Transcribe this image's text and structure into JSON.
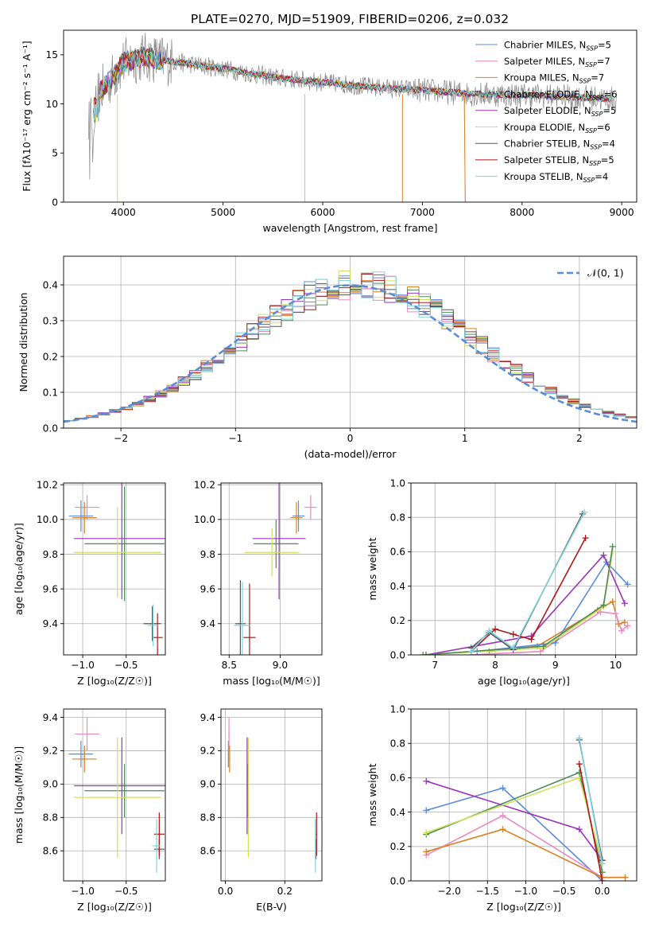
{
  "figure_title": "PLATE=0270, MJD=51909, FIBERID=0206, z=0.032",
  "colors": {
    "Chabrier MILES": "#5b8bd9",
    "Salpeter MILES": "#e88bbd",
    "Kroupa MILES": "#d98021",
    "Chabrier ELODIE": "#4f8a5c",
    "Salpeter ELODIE": "#9b34b8",
    "Kroupa ELODIE": "#cfe05a",
    "Chabrier STELIB": "#555555",
    "Salpeter STELIB": "#b01818",
    "Kroupa STELIB": "#7fd3df",
    "data": "#888888",
    "normal": "#5b8bd9",
    "grid": "#b0b0b0"
  },
  "chart_data": [
    {
      "id": "spectrum",
      "type": "line",
      "xlabel": "wavelength [Angstrom, rest frame]",
      "ylabel": "Flux [f",
      "ylabel_tex": "λ10⁻¹⁷ erg cm⁻² s⁻¹ A⁻¹]",
      "xlim": [
        3400,
        9150
      ],
      "ylim": [
        0,
        17.5
      ],
      "xticks": [
        4000,
        5000,
        6000,
        7000,
        8000,
        9000
      ],
      "yticks": [
        0,
        5,
        10,
        15
      ],
      "grid": false,
      "legend": "top-right",
      "legend_entries": [
        {
          "label": "Chabrier MILES, N",
          "sub": "SSP",
          "tail": "=5"
        },
        {
          "label": "Salpeter MILES, N",
          "sub": "SSP",
          "tail": "=7"
        },
        {
          "label": "Kroupa MILES, N",
          "sub": "SSP",
          "tail": "=7"
        },
        {
          "label": "Chabrier ELODIE, N",
          "sub": "SSP",
          "tail": "=6"
        },
        {
          "label": "Salpeter ELODIE, N",
          "sub": "SSP",
          "tail": "=5"
        },
        {
          "label": "Kroupa ELODIE, N",
          "sub": "SSP",
          "tail": "=6"
        },
        {
          "label": "Chabrier STELIB, N",
          "sub": "SSP",
          "tail": "=4"
        },
        {
          "label": "Salpeter STELIB, N",
          "sub": "SSP",
          "tail": "=5"
        },
        {
          "label": "Kroupa STELIB, N",
          "sub": "SSP",
          "tail": "=4"
        }
      ],
      "model_continuum": [
        [
          3700,
          8.5
        ],
        [
          3750,
          11.0
        ],
        [
          3900,
          12.8
        ],
        [
          4000,
          14.2
        ],
        [
          4200,
          14.8
        ],
        [
          4500,
          14.3
        ],
        [
          5000,
          13.6
        ],
        [
          5500,
          12.7
        ],
        [
          6000,
          12.2
        ],
        [
          6500,
          11.7
        ],
        [
          7000,
          11.4
        ],
        [
          7500,
          11.0
        ],
        [
          8000,
          10.9
        ],
        [
          8500,
          10.7
        ],
        [
          8900,
          10.5
        ]
      ],
      "data_range": [
        3650,
        8950
      ]
    },
    {
      "id": "residuals",
      "type": "histogram",
      "xlabel": "(data-model)/error",
      "ylabel": "Normed distribution",
      "xlim": [
        -2.5,
        2.5
      ],
      "ylim": [
        0,
        0.48
      ],
      "xticks": [
        -2,
        -1,
        0,
        1,
        2
      ],
      "yticks": [
        0.0,
        0.1,
        0.2,
        0.3,
        0.4
      ],
      "grid": true,
      "legend": "top-right",
      "legend_label": "𝒩(0, 1)",
      "bin_width": 0.1
    },
    {
      "id": "age_vs_Z",
      "type": "errorbar",
      "xlabel": "Z [log₁₀(Z/Z☉)]",
      "ylabel": "age  [log₁₀(age/yr)]",
      "xlim": [
        -1.22,
        -0.05
      ],
      "ylim": [
        9.22,
        10.21
      ],
      "xticks": [
        -1.0,
        -0.5
      ],
      "yticks": [
        9.4,
        9.6,
        9.8,
        10.0,
        10.2
      ],
      "grid": true,
      "points": [
        {
          "model": "Chabrier MILES",
          "x": -1.02,
          "xerr": 0.14,
          "y": 10.02,
          "yerr": 0.09
        },
        {
          "model": "Salpeter MILES",
          "x": -0.95,
          "xerr": 0.14,
          "y": 10.07,
          "yerr": 0.07
        },
        {
          "model": "Kroupa MILES",
          "x": -0.98,
          "xerr": 0.14,
          "y": 10.01,
          "yerr": 0.09
        },
        {
          "model": "Chabrier ELODIE",
          "x": -0.52,
          "xerr": 0.46,
          "y": 9.86,
          "yerr": 0.33
        },
        {
          "model": "Salpeter ELODIE",
          "x": -0.55,
          "xerr": 0.55,
          "y": 9.89,
          "yerr": 0.35
        },
        {
          "model": "Kroupa ELODIE",
          "x": -0.6,
          "xerr": 0.5,
          "y": 9.81,
          "yerr": 0.26
        },
        {
          "model": "Chabrier STELIB",
          "x": -0.2,
          "xerr": 0.1,
          "y": 9.4,
          "yerr": 0.1
        },
        {
          "model": "Salpeter STELIB",
          "x": -0.14,
          "xerr": 0.06,
          "y": 9.32,
          "yerr": 0.14
        },
        {
          "model": "Kroupa STELIB",
          "x": -0.19,
          "xerr": 0.06,
          "y": 9.39,
          "yerr": 0.12
        }
      ]
    },
    {
      "id": "age_vs_mass",
      "type": "errorbar",
      "xlabel": "mass [log₁₀(M/M☉)]",
      "ylabel": "",
      "xlim": [
        8.42,
        9.41
      ],
      "ylim": [
        9.22,
        10.21
      ],
      "xticks": [
        8.5,
        9.0
      ],
      "yticks": [
        9.4,
        9.6,
        9.8,
        10.0,
        10.2
      ],
      "grid": true,
      "points": [
        {
          "model": "Chabrier MILES",
          "x": 9.18,
          "xerr": 0.06,
          "y": 10.02,
          "yerr": 0.09
        },
        {
          "model": "Salpeter MILES",
          "x": 9.3,
          "xerr": 0.06,
          "y": 10.07,
          "yerr": 0.07
        },
        {
          "model": "Kroupa MILES",
          "x": 9.16,
          "xerr": 0.06,
          "y": 10.01,
          "yerr": 0.09
        },
        {
          "model": "Chabrier ELODIE",
          "x": 8.96,
          "xerr": 0.22,
          "y": 9.86,
          "yerr": 0.14
        },
        {
          "model": "Salpeter ELODIE",
          "x": 8.99,
          "xerr": 0.26,
          "y": 9.89,
          "yerr": 0.35
        },
        {
          "model": "Kroupa ELODIE",
          "x": 8.92,
          "xerr": 0.27,
          "y": 9.81,
          "yerr": 0.14
        },
        {
          "model": "Chabrier STELIB",
          "x": 8.61,
          "xerr": 0.05,
          "y": 9.4,
          "yerr": 0.25
        },
        {
          "model": "Salpeter STELIB",
          "x": 8.7,
          "xerr": 0.06,
          "y": 9.32,
          "yerr": 0.31
        },
        {
          "model": "Kroupa STELIB",
          "x": 8.63,
          "xerr": 0.08,
          "y": 9.39,
          "yerr": 0.25
        }
      ]
    },
    {
      "id": "weight_vs_age",
      "type": "line",
      "xlabel": "age  [log₁₀(age/yr)]",
      "ylabel": "mass weight",
      "xlim": [
        6.6,
        10.35
      ],
      "ylim": [
        0,
        1
      ],
      "xticks": [
        7,
        8,
        9,
        10
      ],
      "yticks": [
        0.0,
        0.2,
        0.4,
        0.6,
        0.8,
        1.0
      ],
      "grid": true,
      "series": [
        {
          "model": "Kroupa MILES",
          "x": [
            7.9,
            8.7,
            9.7,
            9.95,
            10.05,
            10.15
          ],
          "y": [
            0.02,
            0.05,
            0.26,
            0.31,
            0.18,
            0.19
          ]
        },
        {
          "model": "Salpeter MILES",
          "x": [
            7.6,
            8.75,
            9.75,
            10.0,
            10.1,
            10.2
          ],
          "y": [
            0.0,
            0.02,
            0.25,
            0.24,
            0.14,
            0.17
          ]
        },
        {
          "model": "Chabrier MILES",
          "x": [
            7.7,
            9.0,
            9.85,
            10.2
          ],
          "y": [
            0.02,
            0.07,
            0.54,
            0.41
          ]
        },
        {
          "model": "Salpeter ELODIE",
          "x": [
            6.85,
            8.6,
            9.8,
            10.15
          ],
          "y": [
            0.0,
            0.11,
            0.58,
            0.3
          ]
        },
        {
          "model": "Kroupa ELODIE",
          "x": [
            6.8,
            8.8,
            9.8,
            9.95
          ],
          "y": [
            0.0,
            0.04,
            0.28,
            0.6
          ]
        },
        {
          "model": "Chabrier ELODIE",
          "x": [
            6.8,
            8.8,
            9.8,
            9.95
          ],
          "y": [
            0.0,
            0.05,
            0.29,
            0.63
          ]
        },
        {
          "model": "Salpeter STELIB",
          "x": [
            7.6,
            8.0,
            8.3,
            8.6,
            9.5
          ],
          "y": [
            0.02,
            0.15,
            0.12,
            0.09,
            0.68
          ]
        },
        {
          "model": "Chabrier STELIB",
          "x": [
            7.6,
            7.9,
            8.3,
            9.45
          ],
          "y": [
            0.04,
            0.13,
            0.03,
            0.82
          ]
        },
        {
          "model": "Kroupa STELIB",
          "x": [
            7.6,
            7.9,
            8.3,
            9.48
          ],
          "y": [
            0.02,
            0.14,
            0.04,
            0.83
          ]
        }
      ]
    },
    {
      "id": "mass_vs_Z",
      "type": "errorbar",
      "xlabel": "Z [log₁₀(Z/Z☉)]",
      "ylabel": "mass [log₁₀(M/M☉)]",
      "xlim": [
        -1.22,
        -0.05
      ],
      "ylim": [
        8.42,
        9.45
      ],
      "xticks": [
        -1.0,
        -0.5
      ],
      "yticks": [
        8.6,
        8.8,
        9.0,
        9.2,
        9.4
      ],
      "grid": true,
      "points": [
        {
          "model": "Chabrier MILES",
          "x": -1.02,
          "xerr": 0.14,
          "y": 9.18,
          "yerr": 0.08
        },
        {
          "model": "Salpeter MILES",
          "x": -0.95,
          "xerr": 0.14,
          "y": 9.3,
          "yerr": 0.1
        },
        {
          "model": "Kroupa MILES",
          "x": -0.98,
          "xerr": 0.14,
          "y": 9.15,
          "yerr": 0.08
        },
        {
          "model": "Chabrier ELODIE",
          "x": -0.52,
          "xerr": 0.46,
          "y": 8.96,
          "yerr": 0.16
        },
        {
          "model": "Salpeter ELODIE",
          "x": -0.55,
          "xerr": 0.55,
          "y": 8.99,
          "yerr": 0.29
        },
        {
          "model": "Kroupa ELODIE",
          "x": -0.6,
          "xerr": 0.5,
          "y": 8.92,
          "yerr": 0.36
        },
        {
          "model": "Chabrier STELIB",
          "x": -0.12,
          "xerr": 0.06,
          "y": 8.61,
          "yerr": 0.06
        },
        {
          "model": "Salpeter STELIB",
          "x": -0.12,
          "xerr": 0.06,
          "y": 8.7,
          "yerr": 0.13
        },
        {
          "model": "Kroupa STELIB",
          "x": -0.15,
          "xerr": 0.05,
          "y": 8.63,
          "yerr": 0.16
        }
      ]
    },
    {
      "id": "mass_vs_ebv",
      "type": "errorbar",
      "xlabel": "E(B-V)",
      "ylabel": "",
      "xlim": [
        -0.015,
        0.325
      ],
      "ylim": [
        8.42,
        9.45
      ],
      "xticks": [
        0.0,
        0.2
      ],
      "yticks": [
        8.6,
        8.8,
        9.0,
        9.2,
        9.4
      ],
      "grid": true,
      "points": [
        {
          "model": "Chabrier MILES",
          "x": 0.01,
          "xerr": 0.002,
          "y": 9.18,
          "yerr": 0.08
        },
        {
          "model": "Salpeter MILES",
          "x": 0.012,
          "xerr": 0.002,
          "y": 9.3,
          "yerr": 0.1
        },
        {
          "model": "Kroupa MILES",
          "x": 0.014,
          "xerr": 0.002,
          "y": 9.15,
          "yerr": 0.08
        },
        {
          "model": "Chabrier ELODIE",
          "x": 0.075,
          "xerr": 0.002,
          "y": 8.96,
          "yerr": 0.16
        },
        {
          "model": "Salpeter ELODIE",
          "x": 0.073,
          "xerr": 0.002,
          "y": 8.99,
          "yerr": 0.29
        },
        {
          "model": "Kroupa ELODIE",
          "x": 0.077,
          "xerr": 0.002,
          "y": 8.92,
          "yerr": 0.36
        },
        {
          "model": "Chabrier STELIB",
          "x": 0.305,
          "xerr": 0.002,
          "y": 8.61,
          "yerr": 0.06
        },
        {
          "model": "Salpeter STELIB",
          "x": 0.307,
          "xerr": 0.002,
          "y": 8.7,
          "yerr": 0.13
        },
        {
          "model": "Kroupa STELIB",
          "x": 0.303,
          "xerr": 0.002,
          "y": 8.63,
          "yerr": 0.16
        }
      ]
    },
    {
      "id": "weight_vs_Z",
      "type": "line",
      "xlabel": "Z [log₁₀(Z/Z☉)]",
      "ylabel": "mass weight",
      "xlim": [
        -2.5,
        0.45
      ],
      "ylim": [
        0,
        1
      ],
      "xticks": [
        -2.0,
        -1.5,
        -1.0,
        -0.5,
        0.0
      ],
      "yticks": [
        0.0,
        0.2,
        0.4,
        0.6,
        0.8,
        1.0
      ],
      "grid": true,
      "series": [
        {
          "model": "Chabrier MILES",
          "x": [
            -2.3,
            -1.3,
            0.0
          ],
          "y": [
            0.41,
            0.54,
            0.0
          ]
        },
        {
          "model": "Salpeter MILES",
          "x": [
            -2.3,
            -1.3,
            0.0,
            0.3
          ],
          "y": [
            0.15,
            0.38,
            0.02,
            0.02
          ]
        },
        {
          "model": "Kroupa MILES",
          "x": [
            -2.3,
            -1.3,
            0.0,
            0.3
          ],
          "y": [
            0.17,
            0.3,
            0.02,
            0.02
          ]
        },
        {
          "model": "Chabrier ELODIE",
          "x": [
            -2.3,
            -0.3,
            0.0
          ],
          "y": [
            0.27,
            0.63,
            0.05
          ]
        },
        {
          "model": "Salpeter ELODIE",
          "x": [
            -2.3,
            -0.3,
            0.0
          ],
          "y": [
            0.58,
            0.3,
            0.12
          ]
        },
        {
          "model": "Kroupa ELODIE",
          "x": [
            -2.3,
            -0.3,
            0.0
          ],
          "y": [
            0.28,
            0.6,
            0.1
          ]
        },
        {
          "model": "Chabrier STELIB",
          "x": [
            -0.3,
            0.0
          ],
          "y": [
            0.82,
            0.12
          ]
        },
        {
          "model": "Salpeter STELIB",
          "x": [
            -0.3,
            0.0
          ],
          "y": [
            0.68,
            0.0
          ]
        },
        {
          "model": "Kroupa STELIB",
          "x": [
            -0.3,
            0.0
          ],
          "y": [
            0.83,
            0.1
          ]
        }
      ]
    }
  ]
}
